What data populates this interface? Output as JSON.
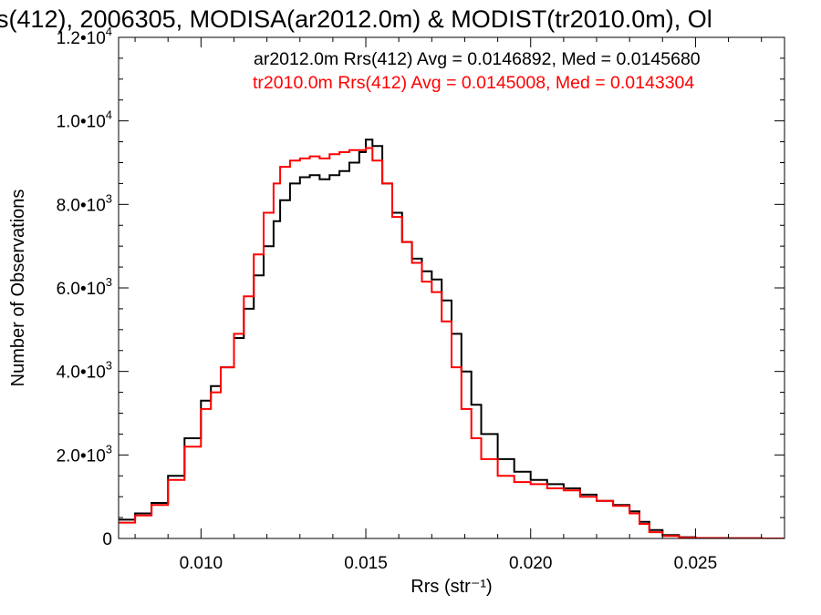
{
  "chart_data": {
    "type": "line",
    "step": true,
    "title": "s(412), 2006305, MODISA(ar2012.0m) & MODIST(tr2010.0m), Ol",
    "xlabel": "Rrs (str⁻¹)",
    "ylabel": "Number of Observations",
    "xlim": [
      0.0075,
      0.0277
    ],
    "ylim": [
      0,
      12000
    ],
    "x_ticks": [
      {
        "value": 0.01,
        "label": "0.010"
      },
      {
        "value": 0.015,
        "label": "0.015"
      },
      {
        "value": 0.02,
        "label": "0.020"
      },
      {
        "value": 0.025,
        "label": "0.025"
      }
    ],
    "y_ticks": [
      {
        "value": 0,
        "mant": "0",
        "exp": ""
      },
      {
        "value": 2000,
        "mant": "2.0•10",
        "exp": "3"
      },
      {
        "value": 4000,
        "mant": "4.0•10",
        "exp": "3"
      },
      {
        "value": 6000,
        "mant": "6.0•10",
        "exp": "3"
      },
      {
        "value": 8000,
        "mant": "8.0•10",
        "exp": "3"
      },
      {
        "value": 10000,
        "mant": "1.0•10",
        "exp": "4"
      },
      {
        "value": 12000,
        "mant": "1.2•10",
        "exp": "4"
      }
    ],
    "legend_position": "top-right",
    "series": [
      {
        "name": "ar2012.0m",
        "label": "ar2012.0m Rrs(412) Avg = 0.0146892, Med = 0.0145680",
        "color": "#000000",
        "x": [
          0.0075,
          0.008,
          0.0085,
          0.009,
          0.0095,
          0.01,
          0.0103,
          0.0106,
          0.011,
          0.0113,
          0.0116,
          0.0119,
          0.0122,
          0.0124,
          0.0127,
          0.013,
          0.0133,
          0.0136,
          0.0139,
          0.0142,
          0.0145,
          0.0148,
          0.015,
          0.0152,
          0.0155,
          0.0158,
          0.0161,
          0.0164,
          0.0167,
          0.017,
          0.0173,
          0.0176,
          0.0179,
          0.0182,
          0.0185,
          0.019,
          0.0195,
          0.02,
          0.0205,
          0.021,
          0.0215,
          0.022,
          0.0225,
          0.023,
          0.0233,
          0.0236,
          0.024,
          0.0245,
          0.025,
          0.026,
          0.027,
          0.0277
        ],
        "y": [
          450,
          600,
          850,
          1500,
          2400,
          3300,
          3650,
          4100,
          4800,
          5500,
          6300,
          7000,
          7600,
          8100,
          8500,
          8650,
          8700,
          8600,
          8700,
          8800,
          9000,
          9250,
          9550,
          9400,
          8500,
          7800,
          7100,
          6700,
          6400,
          6200,
          5700,
          4900,
          4000,
          3200,
          2500,
          1900,
          1600,
          1400,
          1300,
          1200,
          1050,
          900,
          800,
          650,
          400,
          200,
          80,
          30,
          10,
          5,
          0,
          0
        ]
      },
      {
        "name": "tr2010.0m",
        "label": "tr2010.0m Rrs(412) Avg = 0.0145008, Med = 0.0143304",
        "color": "#ff0000",
        "x": [
          0.0075,
          0.008,
          0.0085,
          0.009,
          0.0095,
          0.01,
          0.0103,
          0.0106,
          0.011,
          0.0113,
          0.0116,
          0.0119,
          0.0122,
          0.0124,
          0.0127,
          0.013,
          0.0133,
          0.0136,
          0.0139,
          0.0142,
          0.0145,
          0.0148,
          0.015,
          0.0152,
          0.0155,
          0.0158,
          0.0161,
          0.0164,
          0.0167,
          0.017,
          0.0173,
          0.0176,
          0.0179,
          0.0182,
          0.0185,
          0.019,
          0.0195,
          0.02,
          0.0205,
          0.021,
          0.0215,
          0.022,
          0.0225,
          0.023,
          0.0233,
          0.0236,
          0.024,
          0.0245,
          0.025,
          0.026,
          0.027,
          0.0277
        ],
        "y": [
          380,
          550,
          800,
          1400,
          2200,
          3100,
          3500,
          4100,
          4900,
          5800,
          6800,
          7800,
          8500,
          8900,
          9050,
          9100,
          9150,
          9100,
          9200,
          9250,
          9300,
          9300,
          9350,
          9050,
          8500,
          7700,
          7100,
          6600,
          6150,
          5900,
          5200,
          4100,
          3100,
          2400,
          1900,
          1500,
          1350,
          1300,
          1200,
          1150,
          1000,
          900,
          780,
          600,
          350,
          150,
          60,
          20,
          8,
          5,
          0,
          0
        ]
      }
    ]
  }
}
